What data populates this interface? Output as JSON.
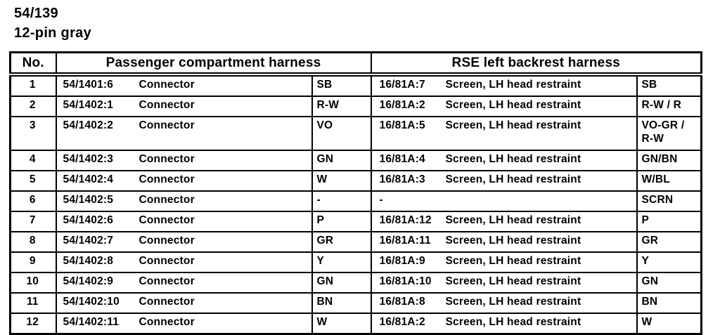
{
  "page": {
    "title_line1": "54/139",
    "title_line2": "12-pin gray"
  },
  "table": {
    "headers": {
      "no": "No.",
      "left": "Passenger compartment harness",
      "right": "RSE left backrest harness"
    },
    "rows": [
      {
        "no": "1",
        "left_id": "54/1401:6",
        "left_desc": "Connector",
        "left_color": "SB",
        "right_id": "16/81A:7",
        "right_desc": "Screen, LH head restraint",
        "right_color": "SB",
        "tall": false
      },
      {
        "no": "2",
        "left_id": "54/1402:1",
        "left_desc": "Connector",
        "left_color": "R-W",
        "right_id": "16/81A:2",
        "right_desc": "Screen, LH head restraint",
        "right_color": "R-W / R",
        "tall": false
      },
      {
        "no": "3",
        "left_id": "54/1402:2",
        "left_desc": "Connector",
        "left_color": "VO",
        "right_id": "16/81A:5",
        "right_desc": "Screen, LH head restraint",
        "right_color": "VO-GR / R-W",
        "tall": true
      },
      {
        "no": "4",
        "left_id": "54/1402:3",
        "left_desc": "Connector",
        "left_color": "GN",
        "right_id": "16/81A:4",
        "right_desc": "Screen, LH head restraint",
        "right_color": "GN/BN",
        "tall": false
      },
      {
        "no": "5",
        "left_id": "54/1402:4",
        "left_desc": "Connector",
        "left_color": "W",
        "right_id": "16/81A:3",
        "right_desc": "Screen, LH head restraint",
        "right_color": "W/BL",
        "tall": false
      },
      {
        "no": "6",
        "left_id": "54/1402:5",
        "left_desc": "Connector",
        "left_color": "-",
        "right_id": "-",
        "right_desc": "",
        "right_color": "SCRN",
        "tall": false
      },
      {
        "no": "7",
        "left_id": "54/1402:6",
        "left_desc": "Connector",
        "left_color": "P",
        "right_id": "16/81A:12",
        "right_desc": "Screen, LH head restraint",
        "right_color": "P",
        "tall": false
      },
      {
        "no": "8",
        "left_id": "54/1402:7",
        "left_desc": "Connector",
        "left_color": "GR",
        "right_id": "16/81A:11",
        "right_desc": "Screen, LH head restraint",
        "right_color": "GR",
        "tall": false
      },
      {
        "no": "9",
        "left_id": "54/1402:8",
        "left_desc": "Connector",
        "left_color": "Y",
        "right_id": "16/81A:9",
        "right_desc": "Screen, LH head restraint",
        "right_color": "Y",
        "tall": false
      },
      {
        "no": "10",
        "left_id": "54/1402:9",
        "left_desc": "Connector",
        "left_color": "GN",
        "right_id": "16/81A:10",
        "right_desc": "Screen, LH head restraint",
        "right_color": "GN",
        "tall": false
      },
      {
        "no": "11",
        "left_id": "54/1402:10",
        "left_desc": "Connector",
        "left_color": "BN",
        "right_id": "16/81A:8",
        "right_desc": "Screen, LH head restraint",
        "right_color": "BN",
        "tall": false
      },
      {
        "no": "12",
        "left_id": "54/1402:11",
        "left_desc": "Connector",
        "left_color": "W",
        "right_id": "16/81A:2",
        "right_desc": "Screen, LH head restraint",
        "right_color": "W",
        "tall": false
      }
    ]
  },
  "colors": {
    "text": "#000000",
    "background": "#ffffff",
    "border": "#000000"
  }
}
